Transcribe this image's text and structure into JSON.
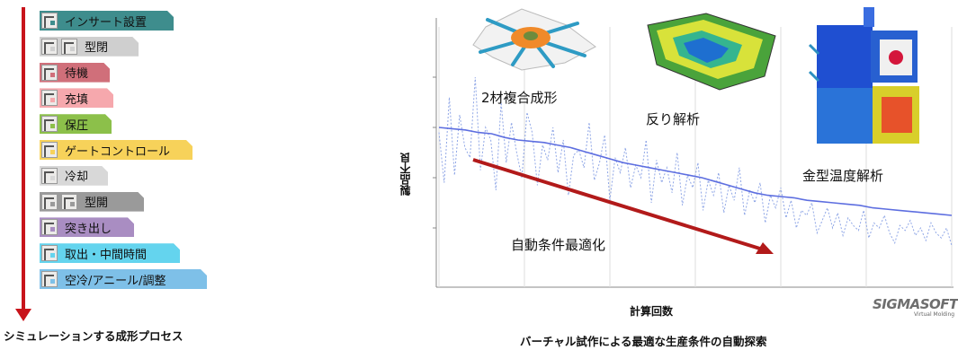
{
  "process": {
    "caption": "シミュレーションする成形プロセス",
    "steps": [
      {
        "label": "インサート設置",
        "color": "#3e8d8d",
        "icons": [
          "insert-icon"
        ]
      },
      {
        "label": "型閉",
        "color": "#cfcfcf",
        "icons": [
          "mold-icon",
          "mold-icon"
        ]
      },
      {
        "label": "待機",
        "color": "#d06f7a",
        "icons": [
          "wait-icon"
        ]
      },
      {
        "label": "充填",
        "color": "#f6a8ad",
        "icons": [
          "fill-icon"
        ]
      },
      {
        "label": "保圧",
        "color": "#8cc04a",
        "icons": [
          "pressure-icon"
        ]
      },
      {
        "label": "ゲートコントロール",
        "color": "#f7d25a",
        "icons": [
          "gate-icon"
        ]
      },
      {
        "label": "冷却",
        "color": "#d8d8d8",
        "icons": [
          "cooling-icon"
        ]
      },
      {
        "label": "型開",
        "color": "#9a9a9a",
        "icons": [
          "mold-icon",
          "mold-icon"
        ]
      },
      {
        "label": "突き出し",
        "color": "#a98dc2",
        "icons": [
          "eject-icon"
        ]
      },
      {
        "label": "取出・中間時間",
        "color": "#64d4ee",
        "icons": [
          "takeout-icon"
        ]
      },
      {
        "label": "空冷/アニール/調整",
        "color": "#7ec0e8",
        "icons": [
          "anneal-icon"
        ]
      }
    ],
    "arrow_color": "#c8141b"
  },
  "figure": {
    "ylabel": "製品不良",
    "xlabel": "計算回数",
    "labels": {
      "two_material": "2材複合成形",
      "warp": "反り解析",
      "mold_temp": "金型温度解析",
      "auto_opt": "自動条件最適化"
    },
    "logo": "SIGMASOFT",
    "logo_sub": "Virtual Molding",
    "caption": "バーチャル試作による最適な生産条件の自動探索"
  },
  "chart_data": {
    "type": "line",
    "series": [
      {
        "values": [
          0.58,
          0.38,
          0.72,
          0.41,
          0.65,
          0.52,
          0.48,
          0.8,
          0.43,
          0.6,
          0.55,
          0.35,
          0.7,
          0.46,
          0.62,
          0.5,
          0.4,
          0.66,
          0.58,
          0.37,
          0.53,
          0.47,
          0.6,
          0.42,
          0.55,
          0.33,
          0.49,
          0.51,
          0.44,
          0.62,
          0.39,
          0.46,
          0.57,
          0.31,
          0.48,
          0.42,
          0.52,
          0.36,
          0.45,
          0.4,
          0.55,
          0.3,
          0.47,
          0.38,
          0.44,
          0.34,
          0.5,
          0.29,
          0.41,
          0.36,
          0.46,
          0.27,
          0.39,
          0.33,
          0.42,
          0.26,
          0.37,
          0.31,
          0.44,
          0.25,
          0.35,
          0.3,
          0.38,
          0.22,
          0.33,
          0.28,
          0.36,
          0.24,
          0.31,
          0.2,
          0.27,
          0.25,
          0.3,
          0.18,
          0.23,
          0.28,
          0.2,
          0.26,
          0.17,
          0.24,
          0.21,
          0.19,
          0.27,
          0.16,
          0.22,
          0.2,
          0.25,
          0.18,
          0.14,
          0.21,
          0.19,
          0.23,
          0.17,
          0.2,
          0.15,
          0.22,
          0.18,
          0.16,
          0.2,
          0.13
        ]
      },
      {
        "values": [
          0.6,
          0.595,
          0.59,
          0.58,
          0.575,
          0.56,
          0.55,
          0.545,
          0.54,
          0.53,
          0.52,
          0.505,
          0.49,
          0.475,
          0.46,
          0.45,
          0.44,
          0.43,
          0.42,
          0.41,
          0.4,
          0.385,
          0.37,
          0.355,
          0.34,
          0.33,
          0.325,
          0.32,
          0.31,
          0.305,
          0.3,
          0.295,
          0.29,
          0.28,
          0.275,
          0.27,
          0.265,
          0.26,
          0.255,
          0.25
        ]
      }
    ]
  }
}
